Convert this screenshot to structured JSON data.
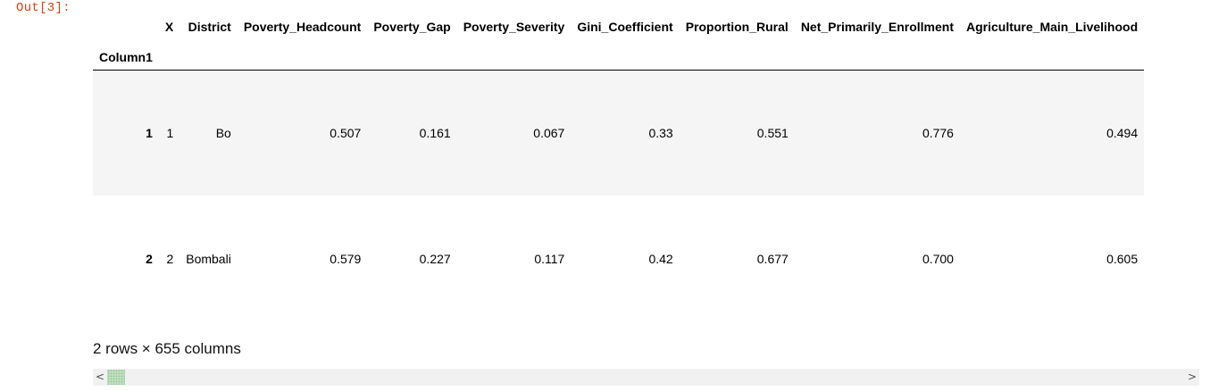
{
  "cell": {
    "prompt": "Out[3]:"
  },
  "table": {
    "columns": [
      "X",
      "District",
      "Poverty_Headcount",
      "Poverty_Gap",
      "Poverty_Severity",
      "Gini_Coefficient",
      "Proportion_Rural",
      "Net_Primarily_Enrollment",
      "Agriculture_Main_Livelihood"
    ],
    "index_name": "Column1",
    "rows": [
      {
        "index": "1",
        "cells": [
          "1",
          "Bo",
          "0.507",
          "0.161",
          "0.067",
          "0.33",
          "0.551",
          "0.776",
          "0.494"
        ]
      },
      {
        "index": "2",
        "cells": [
          "2",
          "Bombali",
          "0.579",
          "0.227",
          "0.117",
          "0.42",
          "0.677",
          "0.700",
          "0.605"
        ]
      }
    ]
  },
  "summary": "2 rows × 655 columns",
  "scrollbar": {
    "left_arrow": "<",
    "right_arrow": ">"
  }
}
